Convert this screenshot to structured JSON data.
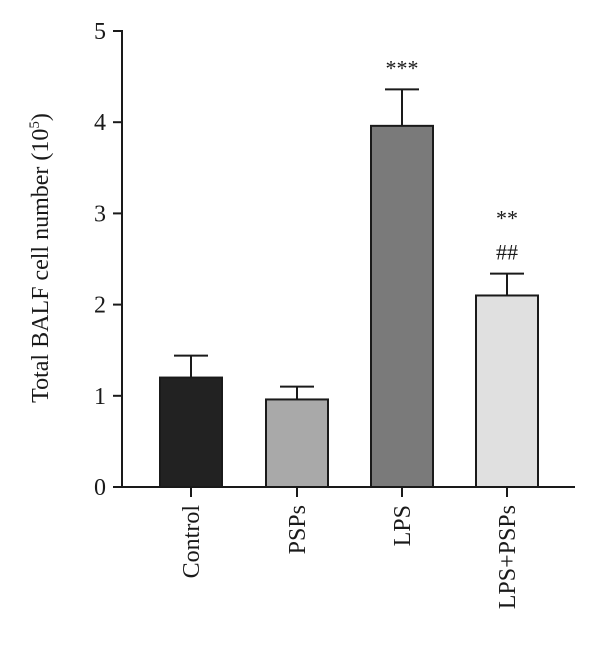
{
  "chart_data": {
    "type": "bar",
    "ylabel_main": "Total BALF cell number (10",
    "ylabel_sup": "5",
    "ylabel_close": ")",
    "ylim": [
      0,
      5
    ],
    "yticks": [
      "0",
      "1",
      "2",
      "3",
      "4",
      "5"
    ],
    "categories": [
      "Control",
      "PSPs",
      "LPS",
      "LPS+PSPs"
    ],
    "values": [
      1.2,
      0.96,
      3.96,
      2.1
    ],
    "errors": [
      0.24,
      0.14,
      0.4,
      0.24
    ],
    "bar_colors": [
      "#222222",
      "#a9a9a9",
      "#7a7a7a",
      "#e0e0e0"
    ],
    "annotations": [
      [],
      [],
      [
        "***"
      ],
      [
        "**",
        "##"
      ]
    ]
  }
}
